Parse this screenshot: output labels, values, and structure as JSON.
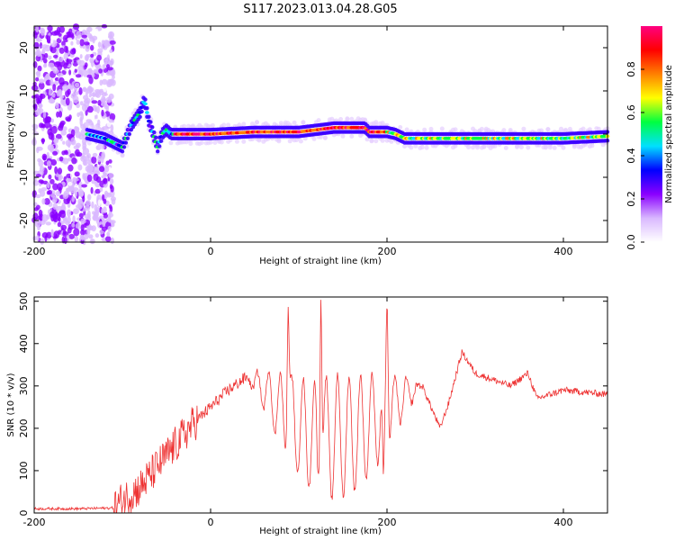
{
  "title": "S117.2023.013.04.28.G05",
  "chart_data": [
    {
      "type": "heatmap",
      "xlabel": "Height of straight line (km)",
      "ylabel": "Frequency (Hz)",
      "xlim": [
        -200,
        450
      ],
      "ylim": [
        -25,
        25
      ],
      "x_ticks": [
        -200,
        0,
        200,
        400
      ],
      "y_ticks": [
        -20,
        -10,
        0,
        10,
        20
      ],
      "colorbar": {
        "label": "Normalized spectral amplitude",
        "range": [
          0,
          1
        ],
        "ticks": [
          0.0,
          0.2,
          0.4,
          0.6,
          0.8
        ],
        "tick_labels": [
          "0.0",
          "0.2",
          "0.4",
          "0.6",
          "0.8"
        ],
        "colormap": [
          "#ffffff",
          "#d9b8ff",
          "#8a00ff",
          "#0000ff",
          "#00e0ff",
          "#00ff40",
          "#ffff00",
          "#ff8000",
          "#ff0000",
          "#ff0080"
        ]
      },
      "ridge": {
        "x": [
          -140,
          -120,
          -100,
          -90,
          -80,
          -75,
          -70,
          -60,
          -55,
          -50,
          -45,
          -40,
          0,
          50,
          100,
          140,
          150,
          175,
          180,
          200,
          210,
          220,
          300,
          400,
          450
        ],
        "y": [
          0,
          -1,
          -3,
          2,
          5,
          8,
          3,
          -3,
          0,
          1,
          0,
          0,
          0,
          0.5,
          0.5,
          1.5,
          1.5,
          1.5,
          0.5,
          0.5,
          0,
          -1,
          -1,
          -1,
          -0.5
        ]
      }
    },
    {
      "type": "line",
      "xlabel": "Height of straight line (km)",
      "ylabel": "SNR (10 * v/v)",
      "xlim": [
        -200,
        450
      ],
      "ylim": [
        0,
        510
      ],
      "x_ticks": [
        -200,
        0,
        200,
        400
      ],
      "y_ticks": [
        0,
        100,
        200,
        300,
        400,
        500
      ],
      "color": "#ee3333",
      "envelope": {
        "x": [
          -200,
          -150,
          -110,
          -100,
          -80,
          -60,
          -40,
          -20,
          0,
          20,
          40,
          60,
          80,
          100,
          120,
          140,
          160,
          180,
          200,
          220,
          240,
          260,
          270,
          285,
          300,
          340,
          360,
          370,
          400,
          450
        ],
        "y": [
          10,
          10,
          12,
          30,
          60,
          110,
          160,
          210,
          250,
          290,
          320,
          340,
          330,
          320,
          310,
          330,
          320,
          330,
          330,
          320,
          300,
          200,
          260,
          380,
          330,
          300,
          330,
          270,
          290,
          280
        ]
      },
      "fringe": {
        "start": 40,
        "end": 240,
        "period": 13,
        "peaks": [
          {
            "x": 125,
            "y": 510
          },
          {
            "x": 200,
            "y": 495
          },
          {
            "x": 88,
            "y": 480
          }
        ],
        "troughs": [
          {
            "x": 122,
            "y": 90
          },
          {
            "x": 196,
            "y": 95
          }
        ]
      }
    }
  ]
}
